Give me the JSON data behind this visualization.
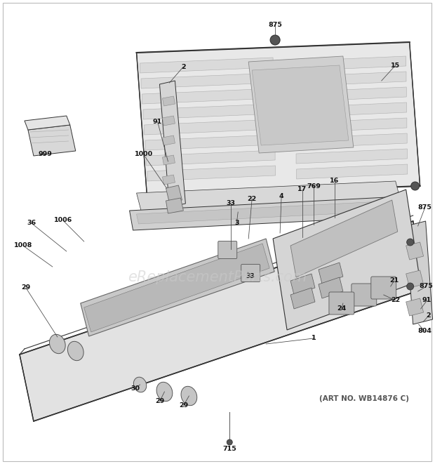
{
  "background_color": "#ffffff",
  "figsize": [
    6.2,
    6.61
  ],
  "dpi": 100,
  "border_color": "#bbbbbb",
  "watermark_text": "eReplacementParts.com",
  "watermark_color": "#cccccc",
  "watermark_alpha": 0.55,
  "watermark_fontsize": 15,
  "art_no_text": "(ART NO. WB14876 C)",
  "art_no_fontsize": 7.5,
  "art_no_color": "#555555",
  "line_color": "#333333",
  "label_color": "#111111",
  "label_fontsize": 6.8
}
